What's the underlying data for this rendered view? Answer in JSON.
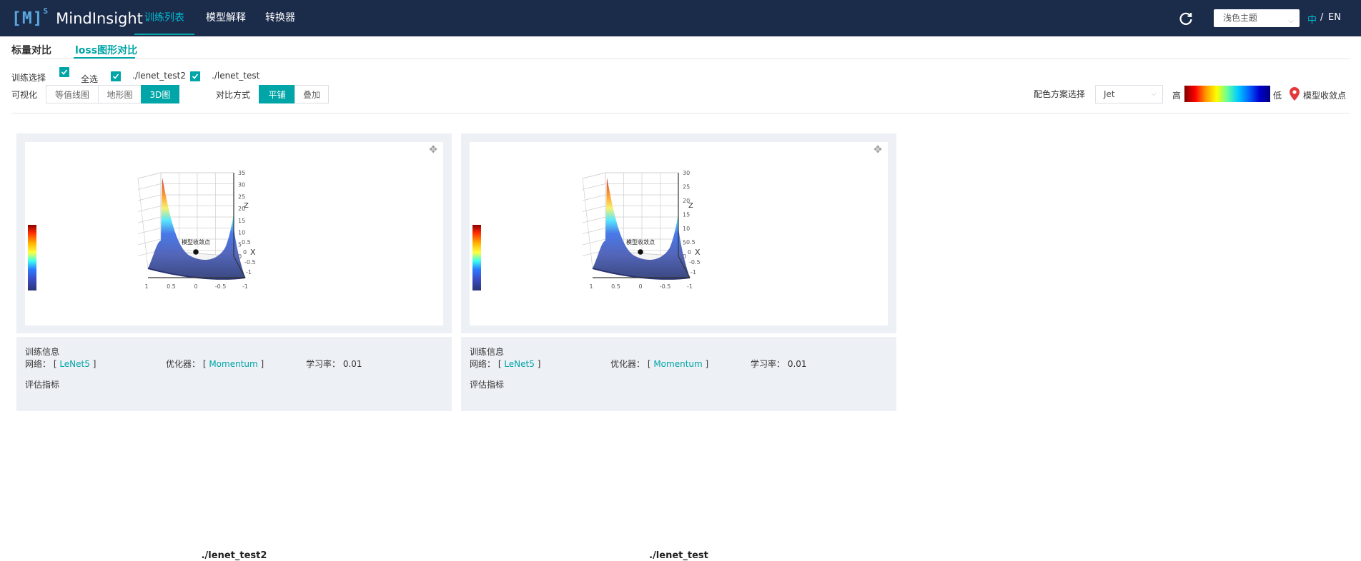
{
  "header": {
    "logo_mark": "[M]",
    "logo_sup": "S",
    "app_name": "MindInsight",
    "nav": [
      {
        "label": "训练列表",
        "active": true
      },
      {
        "label": "模型解释",
        "active": false
      },
      {
        "label": "转换器",
        "active": false
      }
    ],
    "theme": "浅色主题",
    "lang_zh": "中",
    "lang_sep": "/",
    "lang_en": "EN",
    "colors": {
      "bg": "#1b2b4a",
      "accent": "#00a5a7"
    }
  },
  "tabs": [
    {
      "label": "标量对比",
      "active": false
    },
    {
      "label": "loss图形对比",
      "active": true
    }
  ],
  "controls": {
    "train_select_label": "训练选择",
    "select_all_label": "全选",
    "runs": [
      "./lenet_test2",
      "./lenet_test"
    ],
    "visual_label": "可视化",
    "visual_options": [
      "等值线图",
      "地形图",
      "3D图"
    ],
    "visual_selected": "3D图",
    "compare_label": "对比方式",
    "compare_options": [
      "平铺",
      "叠加"
    ],
    "compare_selected": "平铺",
    "color_scheme_label": "配色方案选择",
    "color_scheme": "Jet",
    "high_label": "高",
    "low_label": "低",
    "convergence_label": "模型收敛点"
  },
  "cards": [
    {
      "name": "./lenet_test2",
      "info_title": "训练信息",
      "network_label": "网络：",
      "network": "LeNet5",
      "optimizer_label": "优化器：",
      "optimizer": "Momentum",
      "lr_label": "学习率：",
      "lr": "0.01",
      "metrics_title": "评估指标",
      "convergence_label": "模型收敛点",
      "z_ticks": [
        "35",
        "30",
        "25",
        "20",
        "15",
        "10",
        "5",
        "0"
      ],
      "x_ticks": [
        "0.5",
        "0",
        "-0.5",
        "-1"
      ],
      "y_ticks": [
        "1",
        "0.5",
        "0",
        "-0.5",
        "-1"
      ],
      "z_axis": "Z",
      "x_axis": "X"
    },
    {
      "name": "./lenet_test",
      "info_title": "训练信息",
      "network_label": "网络：",
      "network": "LeNet5",
      "optimizer_label": "优化器：",
      "optimizer": "Momentum",
      "lr_label": "学习率：",
      "lr": "0.01",
      "metrics_title": "评估指标",
      "convergence_label": "模型收敛点",
      "z_ticks": [
        "30",
        "25",
        "20",
        "15",
        "10",
        "5",
        "0"
      ],
      "x_ticks": [
        "0.5",
        "0",
        "-0.5",
        "-1"
      ],
      "y_ticks": [
        "1",
        "0.5",
        "0",
        "-0.5",
        "-1"
      ],
      "z_axis": "Z",
      "x_axis": "X"
    }
  ]
}
